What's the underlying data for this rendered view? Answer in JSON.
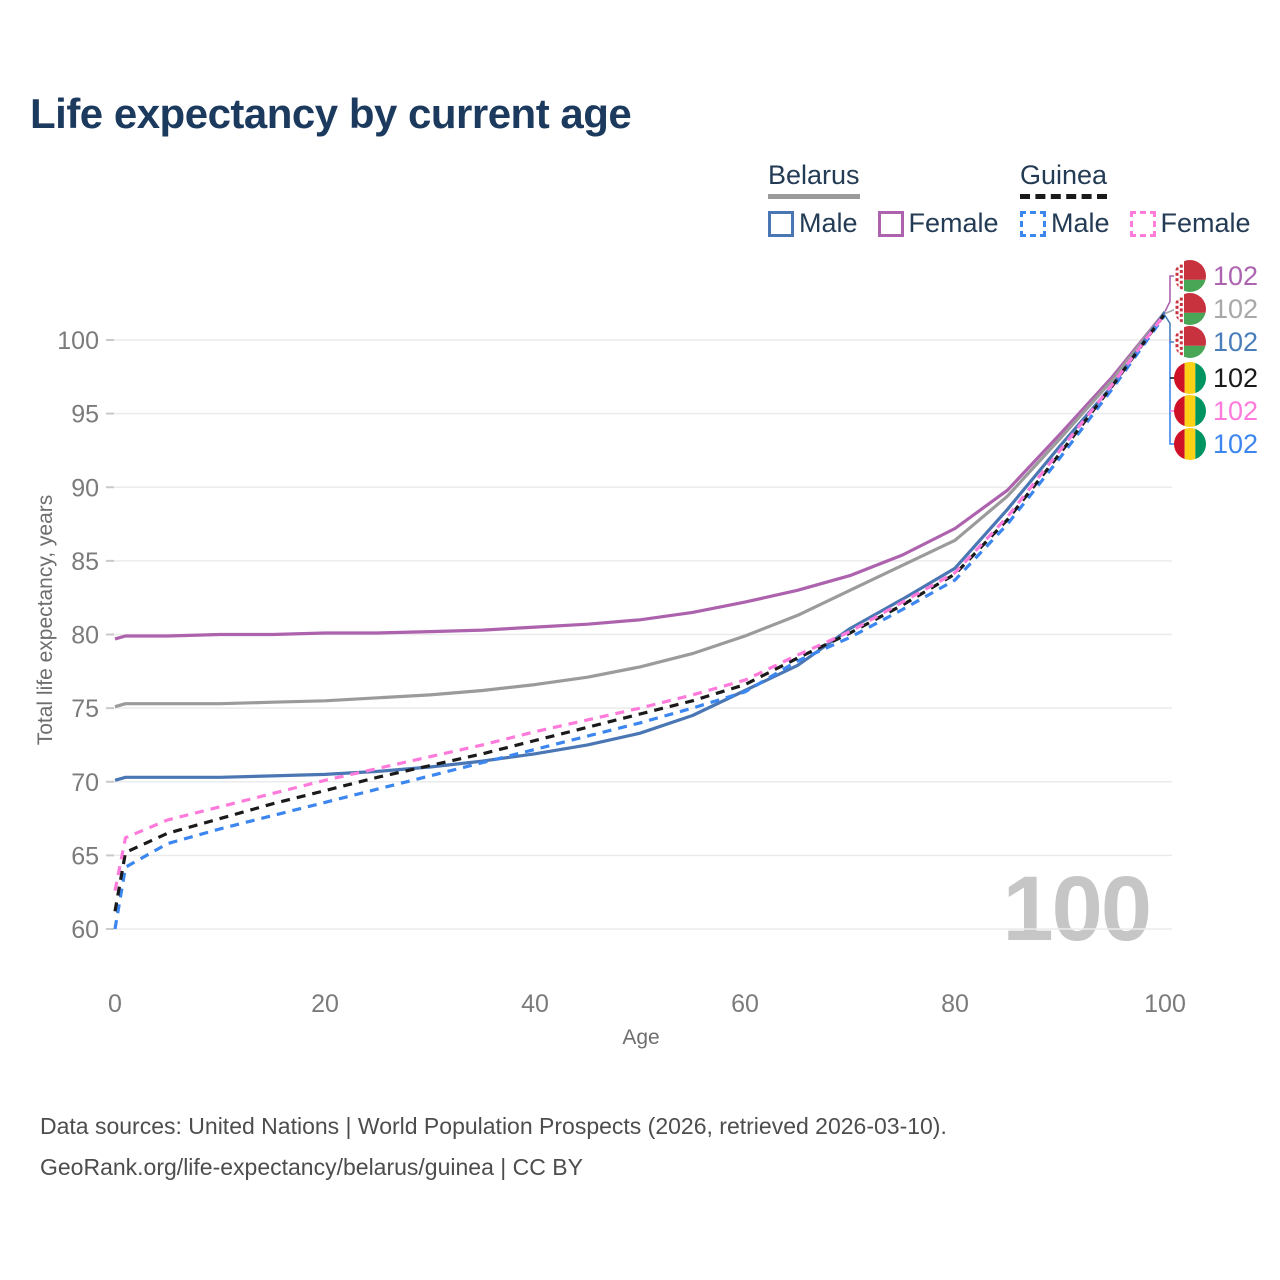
{
  "header": {
    "title": "Life expectancy by current age"
  },
  "legend": {
    "groups": [
      {
        "id": "belarus",
        "label": "Belarus",
        "swatch_color": "#9b9b9b",
        "dash": false,
        "items": [
          {
            "label": "Male",
            "color": "#4a77b4",
            "dash": false
          },
          {
            "label": "Female",
            "color": "#ad62ad",
            "dash": false
          }
        ]
      },
      {
        "id": "guinea",
        "label": "Guinea",
        "swatch_color": "#1a1a1a",
        "dash": true,
        "items": [
          {
            "label": "Male",
            "color": "#3c86f0",
            "dash": true
          },
          {
            "label": "Female",
            "color": "#ff7bdb",
            "dash": true
          }
        ]
      }
    ]
  },
  "chart_data": {
    "type": "line",
    "title": "Life expectancy by current age",
    "xlabel": "Age",
    "ylabel": "Total life expectancy, years",
    "xlim": [
      0,
      100
    ],
    "ylim": [
      59.5,
      103
    ],
    "xticks": [
      0,
      20,
      40,
      60,
      80,
      100
    ],
    "yticks": [
      60,
      65,
      70,
      75,
      80,
      85,
      90,
      95,
      100
    ],
    "grid": "horizontal",
    "legend_position": "top-right",
    "watermark": "100",
    "x": [
      0,
      1,
      5,
      10,
      15,
      20,
      25,
      30,
      35,
      40,
      45,
      50,
      55,
      60,
      65,
      70,
      75,
      80,
      85,
      90,
      95,
      100
    ],
    "series": [
      {
        "name": "Belarus Female",
        "country": "Belarus",
        "style": "solid",
        "color": "#ad62ad",
        "values": [
          79.7,
          79.9,
          79.9,
          80.0,
          80.0,
          80.1,
          80.1,
          80.2,
          80.3,
          80.5,
          80.7,
          81.0,
          81.5,
          82.2,
          83.0,
          84.0,
          85.4,
          87.2,
          89.8,
          93.6,
          97.5,
          101.9
        ]
      },
      {
        "name": "Belarus Both sexes",
        "country": "Belarus",
        "style": "solid",
        "color": "#9b9b9b",
        "values": [
          75.1,
          75.3,
          75.3,
          75.3,
          75.4,
          75.5,
          75.7,
          75.9,
          76.2,
          76.6,
          77.1,
          77.8,
          78.7,
          79.9,
          81.3,
          83.0,
          84.7,
          86.4,
          89.4,
          93.3,
          97.3,
          101.9
        ]
      },
      {
        "name": "Belarus Male",
        "country": "Belarus",
        "style": "solid",
        "color": "#4a77b4",
        "values": [
          70.1,
          70.3,
          70.3,
          70.3,
          70.4,
          70.5,
          70.7,
          71.0,
          71.4,
          71.9,
          72.5,
          73.3,
          74.5,
          76.2,
          77.9,
          80.4,
          82.4,
          84.5,
          88.5,
          92.8,
          96.9,
          101.9
        ]
      },
      {
        "name": "Guinea Male",
        "country": "Guinea",
        "style": "dashed",
        "color": "#3c86f0",
        "values": [
          60.0,
          64.2,
          65.8,
          66.8,
          67.7,
          68.6,
          69.5,
          70.4,
          71.3,
          72.2,
          73.1,
          74.0,
          75.0,
          76.1,
          78.2,
          79.8,
          81.7,
          83.7,
          87.5,
          92.0,
          96.7,
          101.7
        ]
      },
      {
        "name": "Guinea Both sexes",
        "country": "Guinea",
        "style": "dashed",
        "color": "#1a1a1a",
        "values": [
          61.2,
          65.2,
          66.5,
          67.5,
          68.5,
          69.4,
          70.3,
          71.1,
          71.9,
          72.8,
          73.7,
          74.6,
          75.5,
          76.6,
          78.4,
          80.1,
          82.0,
          84.1,
          87.8,
          92.3,
          96.9,
          101.8
        ]
      },
      {
        "name": "Guinea Female",
        "country": "Guinea",
        "style": "dashed",
        "color": "#ff7bdb",
        "values": [
          62.6,
          66.2,
          67.4,
          68.3,
          69.2,
          70.1,
          70.9,
          71.7,
          72.5,
          73.4,
          74.2,
          75.0,
          75.9,
          76.9,
          78.6,
          80.2,
          82.2,
          84.2,
          88.0,
          92.5,
          97.0,
          101.8
        ]
      }
    ],
    "end_labels": [
      {
        "series": "Belarus Female",
        "flag": "belarus",
        "value": "102",
        "color": "#ac64b0"
      },
      {
        "series": "Belarus Both sexes",
        "flag": "belarus",
        "value": "102",
        "color": "#a8a8a8"
      },
      {
        "series": "Belarus Male",
        "flag": "belarus",
        "value": "102",
        "color": "#4a7ebb"
      },
      {
        "series": "Guinea Both sexes",
        "flag": "guinea",
        "value": "102",
        "color": "#1a1a1a"
      },
      {
        "series": "Guinea Female",
        "flag": "guinea",
        "value": "102",
        "color": "#ff7bdb"
      },
      {
        "series": "Guinea Male",
        "flag": "guinea",
        "value": "102",
        "color": "#3c86f0"
      }
    ]
  },
  "footer": {
    "line1": "Data sources: United Nations | World Population Prospects (2026, retrieved 2026-03-10).",
    "line2": "GeoRank.org/life-expectancy/belarus/guinea | CC BY"
  }
}
